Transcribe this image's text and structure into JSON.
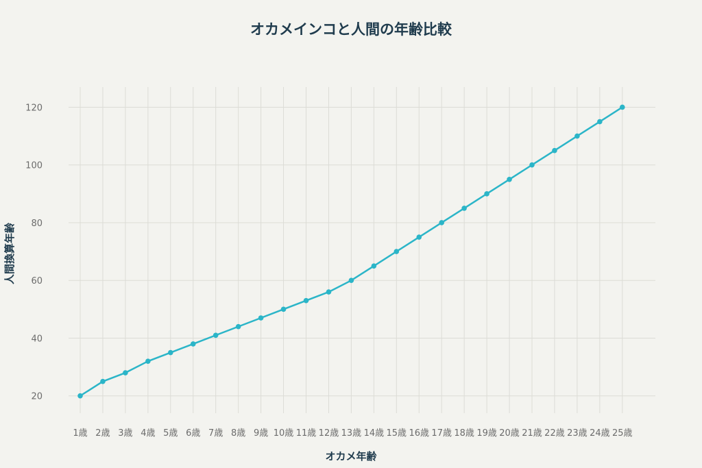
{
  "chart_data": {
    "type": "line",
    "title": "オカメインコと人間の年齢比較",
    "xlabel": "オカメ年齢",
    "ylabel": "人間換算年齢",
    "categories": [
      "1歳",
      "2歳",
      "3歳",
      "4歳",
      "5歳",
      "6歳",
      "7歳",
      "8歳",
      "9歳",
      "10歳",
      "11歳",
      "12歳",
      "13歳",
      "14歳",
      "15歳",
      "16歳",
      "17歳",
      "18歳",
      "19歳",
      "20歳",
      "21歳",
      "22歳",
      "23歳",
      "24歳",
      "25歳"
    ],
    "series": [
      {
        "values": [
          20,
          25,
          28,
          32,
          35,
          38,
          41,
          44,
          47,
          50,
          53,
          56,
          60,
          65,
          70,
          75,
          80,
          85,
          90,
          95,
          100,
          105,
          110,
          115,
          120
        ]
      }
    ],
    "ylim": [
      14,
      127
    ],
    "yticks": [
      20,
      40,
      60,
      80,
      100,
      120
    ],
    "grid": true,
    "legend": "none",
    "colors": {
      "line": "#2bb5c8",
      "grid": "#dcdcd6",
      "text": "#1f3b4d",
      "tick": "#6b6b6b",
      "background": "#f3f3ef"
    }
  }
}
